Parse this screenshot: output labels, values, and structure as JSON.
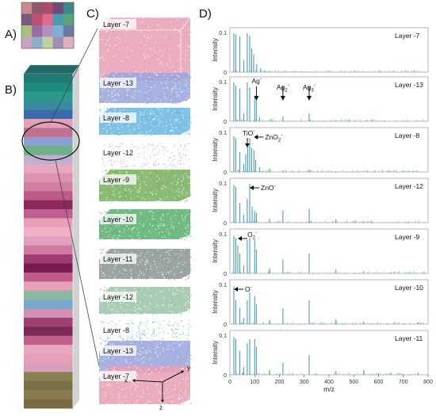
{
  "panel_labels": {
    "a": "A)",
    "b": "B)",
    "c": "C)",
    "d": "D)"
  },
  "colors": {
    "spectrum": "#4a9cc0",
    "layer_minus7": "#e8a0b4",
    "layer_minus13": "#9aa6dc",
    "layer_minus8": "#6bb8e0",
    "layer_minus12": "#9cc4a8",
    "layer_minus9": "#78b060",
    "layer_minus10": "#5cb070",
    "layer_minus11": "#8c9690"
  },
  "panel_a": {
    "grid": [
      [
        "#c98a8f",
        "#8b5a6e",
        "#b04a6a",
        "#6e4a78",
        "#3a8a8a"
      ],
      [
        "#7a5a80",
        "#c05070",
        "#e06a8a",
        "#4a9ab0",
        "#5aa07a"
      ],
      [
        "#a8c080",
        "#9a6aa0",
        "#b090c0",
        "#80b0d0",
        "#6a7aa0"
      ],
      [
        "#d0a0c0",
        "#8ab0c8",
        "#c0d0a0",
        "#a090b0",
        "#e0b0c0"
      ]
    ]
  },
  "panel_b": {
    "bands": [
      "#1f7a72",
      "#1f8a80",
      "#2a9a8a",
      "#3a8aa0",
      "#3a6ab0",
      "#e0a0b8",
      "#c07090",
      "#8aa0d0",
      "#70b088",
      "#c0b0d0",
      "#e8a8c0",
      "#e090b0",
      "#d080a0",
      "#c05a88",
      "#8a2a5a",
      "#c06090",
      "#e8a0b8",
      "#f0b0c8",
      "#e0a0c0",
      "#d07aa0",
      "#a03a70",
      "#7a1a50",
      "#c05a88",
      "#e8a0b8",
      "#8ab8a0",
      "#78a8d0",
      "#d090b0",
      "#a04070",
      "#7a2a58",
      "#c06088",
      "#e8a8c0",
      "#e8a0b8",
      "#d8a0b8",
      "#8a8050",
      "#7a7048",
      "#8a7a50",
      "#7a6a45"
    ]
  },
  "panel_c": {
    "layers": [
      {
        "label": "Layer -7",
        "color": "#e8a0b4"
      },
      {
        "label": "Layer -13",
        "color": "#9aa6dc"
      },
      {
        "label": "Layer -8",
        "color": "#6bb8e0"
      },
      {
        "label": "Layer -12",
        "color": "#9cc4a8"
      },
      {
        "label": "Layer -9",
        "color": "#78b060"
      },
      {
        "label": "Layer -10",
        "color": "#5cb070"
      },
      {
        "label": "Layer -11",
        "color": "#8c9690"
      },
      {
        "label": "Layer -12",
        "color": "#9cc4a8"
      },
      {
        "label": "Layer -8",
        "color": "#6bb8e0"
      },
      {
        "label": "Layer -13",
        "color": "#9aa6dc"
      },
      {
        "label": "Layer -7",
        "color": "#e8a0b4"
      }
    ],
    "axes": {
      "x": "x",
      "y": "y",
      "z": "z"
    }
  },
  "chart_data": {
    "type": "bar",
    "xlabel": "m/z",
    "ylabel": "Intensity",
    "xlim": [
      0,
      800
    ],
    "ylim": [
      0,
      0.1
    ],
    "x_ticks": [
      "0",
      "100",
      "200",
      "300",
      "400",
      "500",
      "600",
      "700",
      "800"
    ],
    "y_ticks": [
      "0",
      "0.1"
    ],
    "panels": [
      {
        "layer": "Layer -7",
        "peaks": [
          [
            16,
            0.098
          ],
          [
            24,
            0.095
          ],
          [
            40,
            0.09
          ],
          [
            56,
            0.03
          ],
          [
            70,
            0.098
          ],
          [
            80,
            0.092
          ],
          [
            88,
            0.06
          ],
          [
            96,
            0.045
          ],
          [
            108,
            0.02
          ],
          [
            124,
            0.01
          ],
          [
            140,
            0.004
          ],
          [
            160,
            0.003
          ]
        ],
        "annotations": []
      },
      {
        "layer": "Layer -13",
        "peaks": [
          [
            16,
            0.098
          ],
          [
            24,
            0.09
          ],
          [
            40,
            0.082
          ],
          [
            56,
            0.02
          ],
          [
            70,
            0.098
          ],
          [
            80,
            0.085
          ],
          [
            100,
            0.06
          ],
          [
            107,
            0.055
          ],
          [
            120,
            0.01
          ],
          [
            214,
            0.012
          ],
          [
            320,
            0.02
          ],
          [
            428,
            0.003
          ]
        ],
        "annotations": [
          {
            "text": "Ag",
            "sup": "-",
            "x": 107
          },
          {
            "text": "Ag",
            "sub": "2",
            "sup": "-",
            "x": 214
          },
          {
            "text": "Ag",
            "sub": "3",
            "sup": "-",
            "x": 320
          }
        ]
      },
      {
        "layer": "Layer -8",
        "peaks": [
          [
            16,
            0.09
          ],
          [
            24,
            0.085
          ],
          [
            40,
            0.05
          ],
          [
            56,
            0.02
          ],
          [
            64,
            0.045
          ],
          [
            72,
            0.07
          ],
          [
            80,
            0.085
          ],
          [
            88,
            0.06
          ],
          [
            97,
            0.055
          ],
          [
            104,
            0.03
          ],
          [
            120,
            0.012
          ],
          [
            160,
            0.008
          ],
          [
            214,
            0.004
          ],
          [
            320,
            0.006
          ],
          [
            428,
            0.002
          ]
        ],
        "annotations": [
          {
            "text": "TiO",
            "sup": "-",
            "x": 64
          },
          {
            "text": "ZnO",
            "sub": "2",
            "sup": "-",
            "x": 97
          }
        ]
      },
      {
        "layer": "Layer -12",
        "peaks": [
          [
            16,
            0.095
          ],
          [
            24,
            0.09
          ],
          [
            40,
            0.05
          ],
          [
            56,
            0.02
          ],
          [
            70,
            0.06
          ],
          [
            80,
            0.098
          ],
          [
            90,
            0.04
          ],
          [
            100,
            0.03
          ],
          [
            107,
            0.025
          ],
          [
            160,
            0.01
          ],
          [
            214,
            0.03
          ],
          [
            320,
            0.035
          ],
          [
            428,
            0.008
          ],
          [
            540,
            0.004
          ]
        ],
        "annotations": [
          {
            "text": "ZnO",
            "sup": "-",
            "x": 80
          }
        ]
      },
      {
        "layer": "Layer -9",
        "peaks": [
          [
            16,
            0.095
          ],
          [
            24,
            0.088
          ],
          [
            32,
            0.07
          ],
          [
            40,
            0.05
          ],
          [
            56,
            0.02
          ],
          [
            70,
            0.085
          ],
          [
            80,
            0.09
          ],
          [
            100,
            0.085
          ],
          [
            107,
            0.06
          ],
          [
            160,
            0.012
          ],
          [
            214,
            0.035
          ],
          [
            320,
            0.05
          ],
          [
            428,
            0.01
          ],
          [
            540,
            0.005
          ],
          [
            650,
            0.003
          ]
        ],
        "annotations": [
          {
            "text": "O",
            "sub": "2",
            "sup": "-",
            "x": 32
          }
        ]
      },
      {
        "layer": "Layer -10",
        "peaks": [
          [
            16,
            0.095
          ],
          [
            24,
            0.06
          ],
          [
            40,
            0.04
          ],
          [
            56,
            0.015
          ],
          [
            70,
            0.06
          ],
          [
            80,
            0.08
          ],
          [
            100,
            0.07
          ],
          [
            107,
            0.05
          ],
          [
            160,
            0.01
          ],
          [
            214,
            0.04
          ],
          [
            320,
            0.06
          ],
          [
            428,
            0.012
          ],
          [
            540,
            0.006
          ],
          [
            760,
            0.004
          ]
        ],
        "annotations": [
          {
            "text": "O",
            "sup": "-",
            "x": 16
          }
        ]
      },
      {
        "layer": "Layer -11",
        "peaks": [
          [
            16,
            0.095
          ],
          [
            24,
            0.09
          ],
          [
            40,
            0.06
          ],
          [
            56,
            0.02
          ],
          [
            70,
            0.08
          ],
          [
            80,
            0.09
          ],
          [
            100,
            0.09
          ],
          [
            107,
            0.07
          ],
          [
            160,
            0.012
          ],
          [
            214,
            0.03
          ],
          [
            320,
            0.05
          ],
          [
            428,
            0.01
          ],
          [
            540,
            0.012
          ],
          [
            650,
            0.004
          ],
          [
            760,
            0.005
          ]
        ],
        "annotations": []
      }
    ]
  }
}
